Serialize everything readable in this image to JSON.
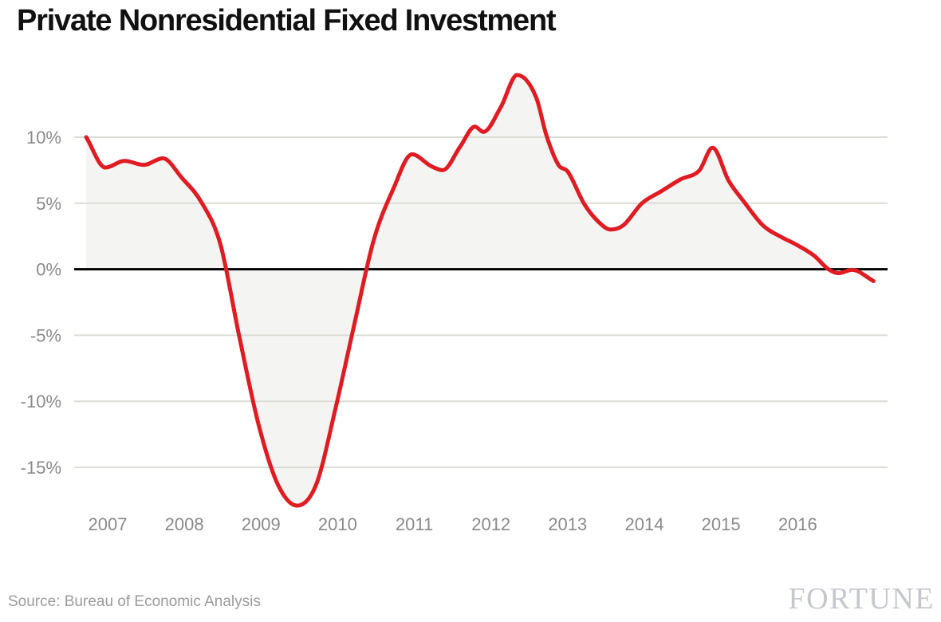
{
  "title": "Private Nonresidential Fixed Investment",
  "footer": {
    "source": "Source: Bureau of Economic Analysis",
    "brand": "FORTUNE"
  },
  "colors": {
    "line_red": "#e01b22",
    "area_fill": "#f4f4f2",
    "gridline": "#dcdcd6",
    "zero_line": "#000000",
    "tick_text": "#8a8a8a",
    "title_text": "#111111",
    "source_text": "#9b9b9b",
    "brand_text": "#c5c7cc",
    "background": "#ffffff"
  },
  "chart_data": {
    "type": "area",
    "title": "Private Nonresidential Fixed Investment",
    "xlabel": "",
    "ylabel": "",
    "grid": true,
    "legend": "none",
    "baseline": 0,
    "xlim": [
      2006.7,
      2017.0
    ],
    "ylim": [
      -18.5,
      15.2
    ],
    "x_axis": {
      "ticks": [
        {
          "value": 2007,
          "label": "2007"
        },
        {
          "value": 2008,
          "label": "2008"
        },
        {
          "value": 2009,
          "label": "2009"
        },
        {
          "value": 2010,
          "label": "2010"
        },
        {
          "value": 2011,
          "label": "2011"
        },
        {
          "value": 2012,
          "label": "2012"
        },
        {
          "value": 2013,
          "label": "2013"
        },
        {
          "value": 2014,
          "label": "2014"
        },
        {
          "value": 2015,
          "label": "2015"
        },
        {
          "value": 2016,
          "label": "2016"
        }
      ]
    },
    "y_axis": {
      "ticks": [
        {
          "value": 10,
          "label": "10%"
        },
        {
          "value": 5,
          "label": "5%"
        },
        {
          "value": 0,
          "label": "0%"
        },
        {
          "value": -5,
          "label": "-5%"
        },
        {
          "value": -10,
          "label": "-10%"
        },
        {
          "value": -15,
          "label": "-15%"
        }
      ]
    },
    "series": [
      {
        "name": "Private Nonresidential Fixed Investment",
        "units": "percent change",
        "points": [
          [
            2006.72,
            10.0
          ],
          [
            2006.97,
            7.7
          ],
          [
            2007.22,
            8.2
          ],
          [
            2007.47,
            7.9
          ],
          [
            2007.72,
            8.4
          ],
          [
            2007.97,
            6.9
          ],
          [
            2008.22,
            5.1
          ],
          [
            2008.47,
            1.9
          ],
          [
            2008.72,
            -5.2
          ],
          [
            2008.97,
            -11.8
          ],
          [
            2009.22,
            -16.3
          ],
          [
            2009.47,
            -17.9
          ],
          [
            2009.72,
            -16.3
          ],
          [
            2009.97,
            -10.6
          ],
          [
            2010.22,
            -4.1
          ],
          [
            2010.47,
            2.2
          ],
          [
            2010.72,
            6.0
          ],
          [
            2010.97,
            8.7
          ],
          [
            2011.22,
            7.8
          ],
          [
            2011.37,
            7.5
          ],
          [
            2011.6,
            9.3
          ],
          [
            2011.79,
            10.8
          ],
          [
            2011.9,
            10.4
          ],
          [
            2012.13,
            12.3
          ],
          [
            2012.34,
            14.7
          ],
          [
            2012.59,
            13.0
          ],
          [
            2012.72,
            10.2
          ],
          [
            2012.88,
            7.9
          ],
          [
            2013.0,
            7.4
          ],
          [
            2013.22,
            4.9
          ],
          [
            2013.4,
            3.6
          ],
          [
            2013.56,
            3.0
          ],
          [
            2013.72,
            3.3
          ],
          [
            2013.97,
            5.0
          ],
          [
            2014.22,
            5.9
          ],
          [
            2014.47,
            6.8
          ],
          [
            2014.72,
            7.5
          ],
          [
            2014.89,
            9.2
          ],
          [
            2015.1,
            6.7
          ],
          [
            2015.3,
            5.1
          ],
          [
            2015.55,
            3.3
          ],
          [
            2015.8,
            2.4
          ],
          [
            2015.97,
            1.9
          ],
          [
            2016.22,
            1.0
          ],
          [
            2016.4,
            0.0
          ],
          [
            2016.53,
            -0.3
          ],
          [
            2016.71,
            -0.05
          ],
          [
            2016.99,
            -0.9
          ]
        ]
      }
    ]
  }
}
